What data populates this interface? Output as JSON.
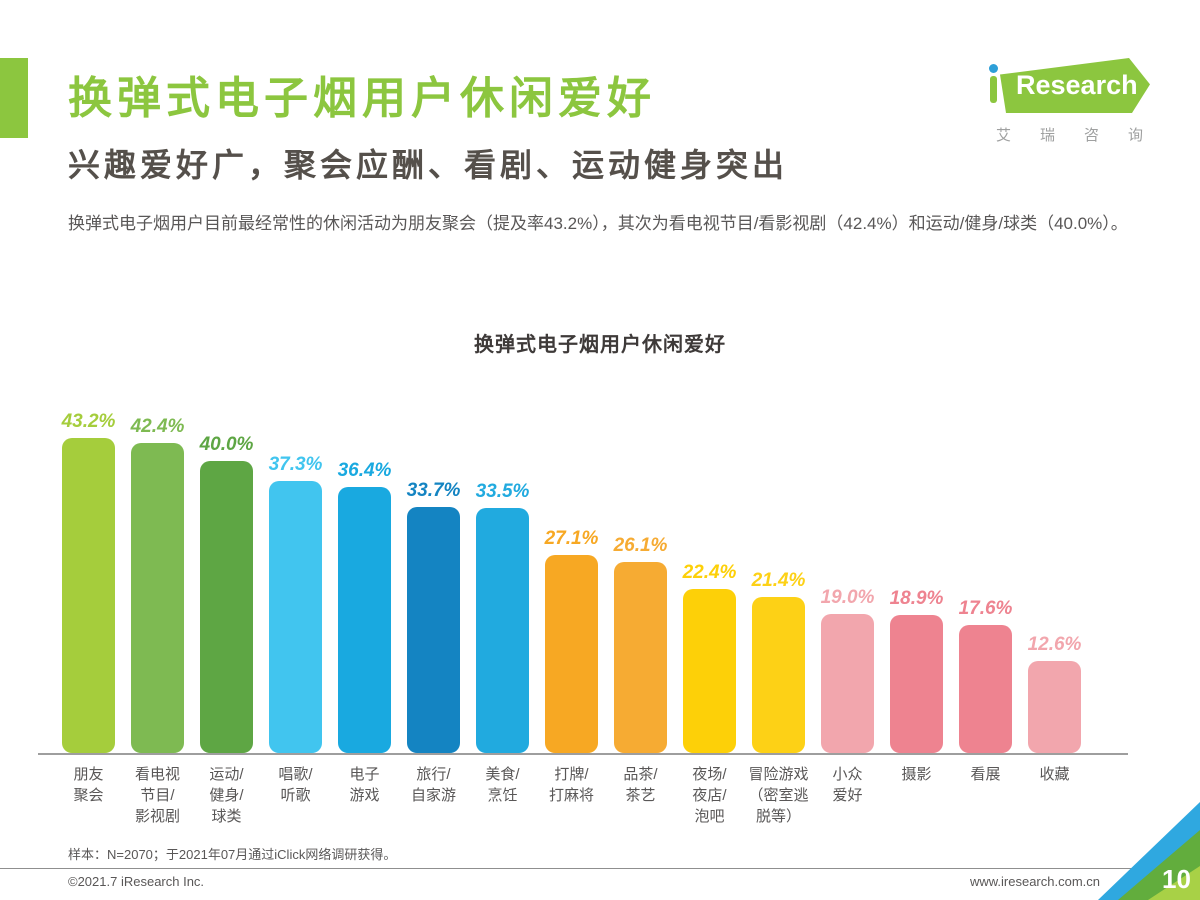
{
  "header": {
    "accent_color": "#8cc63f",
    "title": "换弹式电子烟用户休闲爱好",
    "subtitle": "兴趣爱好广，聚会应酬、看剧、运动健身突出",
    "body": "换弹式电子烟用户目前最经常性的休闲活动为朋友聚会（提及率43.2%），其次为看电视节目/看影视剧（42.4%）和运动/健身/球类（40.0%）。"
  },
  "logo": {
    "brand": "Research",
    "subtitle": "艾瑞咨询"
  },
  "chart_data": {
    "type": "bar",
    "title": "换弹式电子烟用户休闲爱好",
    "categories": [
      "朋友聚会",
      "看电视节目/影视剧",
      "运动/健身/球类",
      "唱歌/听歌",
      "电子游戏",
      "旅行/自家游",
      "美食/烹饪",
      "打牌/打麻将",
      "品茶/茶艺",
      "夜场/夜店/泡吧",
      "冒险游戏（密室逃脱等）",
      "小众爱好",
      "摄影",
      "看展",
      "收藏"
    ],
    "category_lines": [
      [
        "朋友",
        "聚会"
      ],
      [
        "看电视",
        "节目/",
        "影视剧"
      ],
      [
        "运动/",
        "健身/",
        "球类"
      ],
      [
        "唱歌/",
        "听歌"
      ],
      [
        "电子",
        "游戏"
      ],
      [
        "旅行/",
        "自家游"
      ],
      [
        "美食/",
        "烹饪"
      ],
      [
        "打牌/",
        "打麻将"
      ],
      [
        "品茶/",
        "茶艺"
      ],
      [
        "夜场/",
        "夜店/",
        "泡吧"
      ],
      [
        "冒险游戏",
        "（密室逃",
        "脱等）"
      ],
      [
        "小众",
        "爱好"
      ],
      [
        "摄影"
      ],
      [
        "看展"
      ],
      [
        "收藏"
      ]
    ],
    "values": [
      43.2,
      42.4,
      40.0,
      37.3,
      36.4,
      33.7,
      33.5,
      27.1,
      26.1,
      22.4,
      21.4,
      19.0,
      18.9,
      17.6,
      12.6
    ],
    "value_labels": [
      "43.2%",
      "42.4%",
      "40.0%",
      "37.3%",
      "36.4%",
      "33.7%",
      "33.5%",
      "27.1%",
      "26.1%",
      "22.4%",
      "21.4%",
      "19.0%",
      "18.9%",
      "17.6%",
      "12.6%"
    ],
    "bar_colors": [
      "#a5cd3c",
      "#7eba52",
      "#5ea644",
      "#41c5ef",
      "#19a9e0",
      "#1484c2",
      "#21aadf",
      "#f7a823",
      "#f6ab33",
      "#fdd008",
      "#fdd116",
      "#f2a6ad",
      "#ee8390",
      "#ee8390",
      "#f2a6ad"
    ],
    "ylim": [
      0,
      45
    ],
    "grid": false,
    "legend": "none"
  },
  "footnote": "样本：N=2070；于2021年07月通过iClick网络调研获得。",
  "footer": {
    "copyright": "©2021.7 iResearch Inc.",
    "website": "www.iresearch.com.cn",
    "page_number": "10"
  }
}
